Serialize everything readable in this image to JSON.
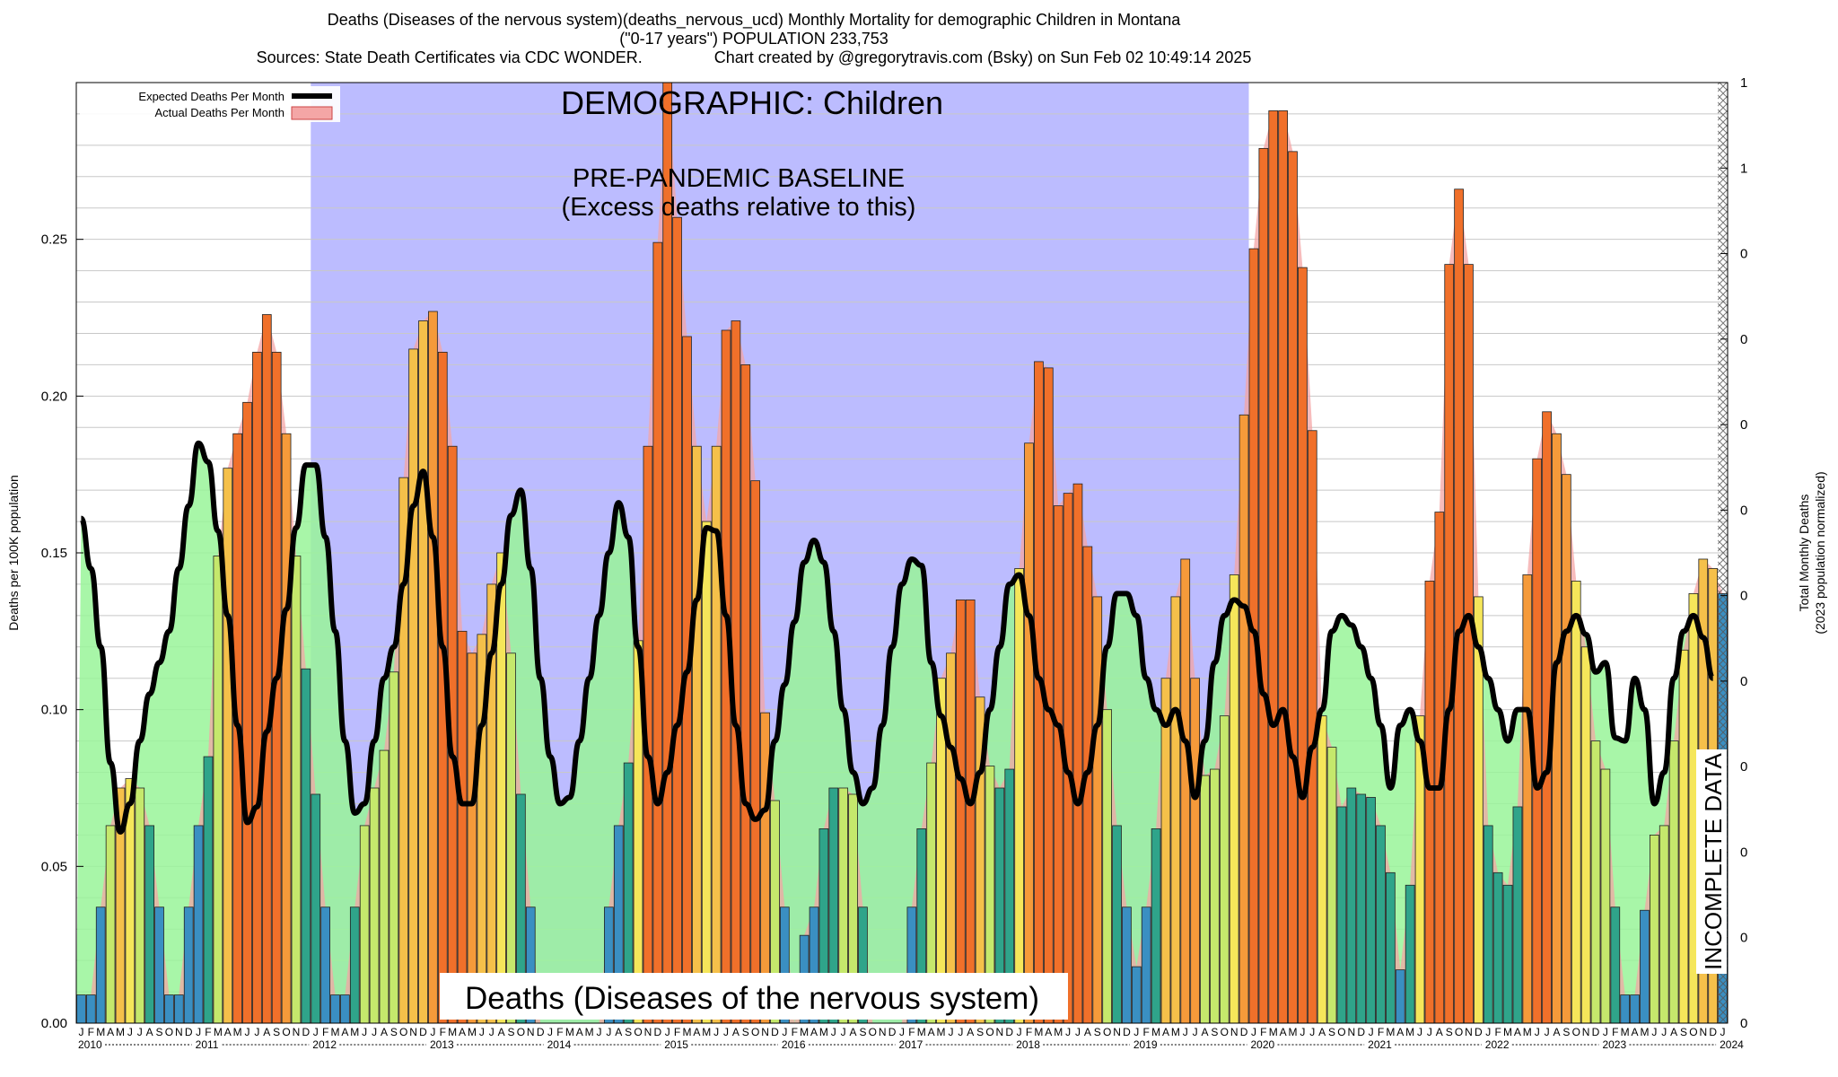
{
  "header": {
    "line1": "Deaths (Diseases of the nervous system)(deaths_nervous_ucd) Monthly Mortality for demographic Children in Montana",
    "line2": "(\"0-17 years\") POPULATION 233,753",
    "line3": "Sources: State Death Certificates via CDC WONDER.                Chart created by @gregorytravis.com (Bsky) on Sun Feb 02 10:49:14 2025"
  },
  "annotations": {
    "demographic": "DEMOGRAPHIC: Children",
    "baseline_line1": "PRE-PANDEMIC BASELINE",
    "baseline_line2": "(Excess deaths relative to this)",
    "cause": "Deaths (Diseases of the nervous system)",
    "incomplete": "INCOMPLETE DATA"
  },
  "legend": {
    "expected": "Expected Deaths Per Month",
    "actual": "Actual Deaths Per Month"
  },
  "colors": {
    "baseline_region": "#bcbcff",
    "expected_line": "#000000",
    "actual_fill": "#f4a6a6",
    "below_expected_fill": "#99f599",
    "hatch": "#888888"
  },
  "chart_data": {
    "type": "bar",
    "xlabel": "",
    "ylabel": "Deaths per 100K population",
    "y2label": "Total Monthly Deaths",
    "y2label_sub": "(2023 population normalized)",
    "ylim": [
      0,
      0.3
    ],
    "yticks": [
      "0.00",
      "0.05",
      "0.10",
      "0.15",
      "0.20",
      "0.25"
    ],
    "y2ticks": [
      "0",
      "0",
      "0",
      "0",
      "0",
      "0",
      "0",
      "0",
      "0",
      "0",
      "1",
      "1"
    ],
    "month_letters": [
      "J",
      "F",
      "M",
      "A",
      "M",
      "J",
      "J",
      "A",
      "S",
      "O",
      "N",
      "D"
    ],
    "years": [
      "2010",
      "2011",
      "2012",
      "2013",
      "2014",
      "2015",
      "2016",
      "2017",
      "2018",
      "2019",
      "2020",
      "2021",
      "2022",
      "2023",
      "2024"
    ],
    "baseline_period": [
      "2012-01",
      "2019-12"
    ],
    "incomplete_from": "2024-01",
    "grid": true,
    "legend_position": "top-left",
    "series": [
      {
        "name": "Actual Deaths Per Month",
        "values": [
          0.009,
          0.009,
          0.037,
          0.063,
          0.075,
          0.078,
          0.075,
          0.063,
          0.037,
          0.009,
          0.009,
          0.037,
          0.063,
          0.085,
          0.149,
          0.177,
          0.188,
          0.198,
          0.214,
          0.226,
          0.214,
          0.188,
          0.149,
          0.113,
          0.073,
          0.037,
          0.009,
          0.009,
          0.037,
          0.063,
          0.075,
          0.087,
          0.112,
          0.174,
          0.215,
          0.224,
          0.227,
          0.214,
          0.184,
          0.125,
          0.118,
          0.124,
          0.14,
          0.15,
          0.118,
          0.073,
          0.037,
          0.0,
          0.0,
          0.0,
          0.0,
          0.0,
          0.0,
          0.0,
          0.037,
          0.063,
          0.083,
          0.122,
          0.184,
          0.249,
          0.3,
          0.257,
          0.219,
          0.184,
          0.16,
          0.184,
          0.221,
          0.224,
          0.21,
          0.173,
          0.099,
          0.071,
          0.037,
          0.0,
          0.028,
          0.037,
          0.062,
          0.075,
          0.075,
          0.073,
          0.037,
          0.0,
          0.0,
          0.0,
          0.0,
          0.037,
          0.062,
          0.083,
          0.11,
          0.118,
          0.135,
          0.135,
          0.104,
          0.082,
          0.075,
          0.081,
          0.145,
          0.185,
          0.211,
          0.209,
          0.165,
          0.169,
          0.172,
          0.152,
          0.136,
          0.1,
          0.063,
          0.037,
          0.018,
          0.037,
          0.062,
          0.11,
          0.136,
          0.148,
          0.11,
          0.079,
          0.081,
          0.098,
          0.143,
          0.194,
          0.247,
          0.279,
          0.291,
          0.291,
          0.278,
          0.241,
          0.189,
          0.098,
          0.088,
          0.069,
          0.075,
          0.073,
          0.072,
          0.063,
          0.048,
          0.017,
          0.044,
          0.098,
          0.141,
          0.163,
          0.242,
          0.266,
          0.242,
          0.136,
          0.063,
          0.048,
          0.044,
          0.069,
          0.143,
          0.18,
          0.195,
          0.188,
          0.175,
          0.141,
          0.12,
          0.09,
          0.081,
          0.037,
          0.009,
          0.009,
          0.036,
          0.06,
          0.063,
          0.09,
          0.119,
          0.137,
          0.148,
          0.145,
          0.137
        ]
      },
      {
        "name": "Expected Deaths Per Month",
        "values": [
          0.161,
          0.145,
          0.12,
          0.083,
          0.061,
          0.07,
          0.09,
          0.105,
          0.115,
          0.125,
          0.145,
          0.165,
          0.185,
          0.179,
          0.157,
          0.13,
          0.095,
          0.064,
          0.069,
          0.093,
          0.11,
          0.132,
          0.158,
          0.178,
          0.178,
          0.155,
          0.125,
          0.09,
          0.067,
          0.07,
          0.09,
          0.11,
          0.12,
          0.14,
          0.165,
          0.176,
          0.155,
          0.12,
          0.085,
          0.07,
          0.07,
          0.095,
          0.118,
          0.14,
          0.162,
          0.17,
          0.145,
          0.11,
          0.085,
          0.07,
          0.072,
          0.09,
          0.11,
          0.13,
          0.15,
          0.166,
          0.155,
          0.12,
          0.085,
          0.07,
          0.08,
          0.095,
          0.112,
          0.135,
          0.158,
          0.157,
          0.13,
          0.095,
          0.07,
          0.065,
          0.068,
          0.09,
          0.108,
          0.128,
          0.147,
          0.154,
          0.147,
          0.125,
          0.1,
          0.08,
          0.07,
          0.075,
          0.095,
          0.12,
          0.14,
          0.148,
          0.146,
          0.115,
          0.098,
          0.088,
          0.078,
          0.07,
          0.08,
          0.1,
          0.12,
          0.14,
          0.143,
          0.13,
          0.11,
          0.1,
          0.095,
          0.08,
          0.07,
          0.08,
          0.095,
          0.12,
          0.137,
          0.137,
          0.13,
          0.11,
          0.1,
          0.095,
          0.1,
          0.09,
          0.072,
          0.09,
          0.115,
          0.13,
          0.135,
          0.133,
          0.125,
          0.105,
          0.095,
          0.1,
          0.085,
          0.072,
          0.088,
          0.1,
          0.125,
          0.13,
          0.127,
          0.12,
          0.11,
          0.095,
          0.075,
          0.095,
          0.1,
          0.09,
          0.075,
          0.075,
          0.1,
          0.125,
          0.13,
          0.12,
          0.11,
          0.1,
          0.09,
          0.1,
          0.1,
          0.075,
          0.08,
          0.115,
          0.125,
          0.13,
          0.124,
          0.112,
          0.115,
          0.091,
          0.09,
          0.11,
          0.1,
          0.07,
          0.08,
          0.11,
          0.125,
          0.13,
          0.123,
          0.11
        ]
      }
    ]
  }
}
